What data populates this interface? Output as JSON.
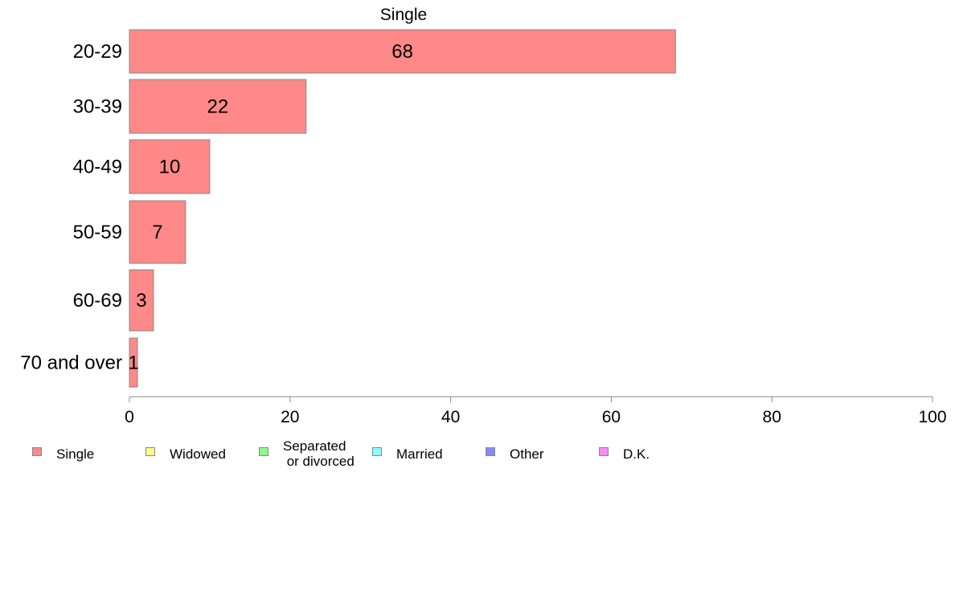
{
  "chart_data": {
    "type": "bar",
    "orientation": "horizontal",
    "title": "Single",
    "categories": [
      "20-29",
      "30-39",
      "40-49",
      "50-59",
      "60-69",
      "70 and over"
    ],
    "series": [
      {
        "name": "Single",
        "values": [
          68,
          22,
          10,
          7,
          3,
          1
        ]
      }
    ],
    "data_labels": [
      "68",
      "22",
      "10",
      "7",
      "3",
      "1"
    ],
    "xlim": [
      0,
      100
    ],
    "x_ticks": [
      0,
      20,
      40,
      60,
      80,
      100
    ],
    "grid": false,
    "legend_position": "bottom-left"
  },
  "legend": [
    {
      "label": "Single",
      "color": "#ff8888"
    },
    {
      "label": "Widowed",
      "color": "#ffff88"
    },
    {
      "label": "Separated\n or divorced",
      "color": "#88ff88"
    },
    {
      "label": "Married",
      "color": "#88ffff"
    },
    {
      "label": "Other",
      "color": "#8888ff"
    },
    {
      "label": "D.K.",
      "color": "#ff88ff"
    }
  ],
  "colors": {
    "bar_fill": "#ff8888",
    "bar_stroke": "#888888",
    "axis": "#888888",
    "text": "#000000"
  }
}
